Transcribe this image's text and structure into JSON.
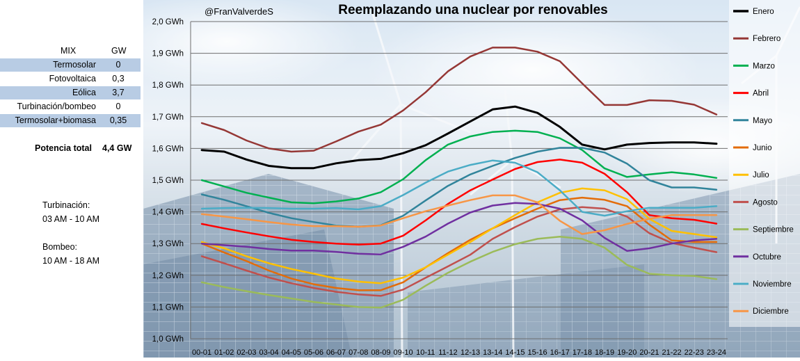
{
  "mix_table": {
    "header_label": "MIX",
    "header_unit": "GW",
    "rows": [
      {
        "label": "Termosolar",
        "value": "0"
      },
      {
        "label": "Fotovoltaica",
        "value": "0,3"
      },
      {
        "label": "Eólica",
        "value": "3,7"
      },
      {
        "label": "Turbinación/bombeo",
        "value": "0"
      },
      {
        "label": "Termosolar+biomasa",
        "value": "0,35"
      }
    ],
    "total_label": "Potencia total",
    "total_value": "4,4 GW"
  },
  "notes": {
    "turbinacion_label": "Turbinación:",
    "turbinacion_hours": "03 AM - 10 AM",
    "bombeo_label": "Bombeo:",
    "bombeo_hours": "10 AM - 18 AM"
  },
  "chart_data": {
    "type": "line",
    "title": "Reemplazando una nuclear por renovables",
    "subtitle": "@FranValverdeS",
    "ylim": [
      1.0,
      2.0
    ],
    "yticks": [
      1.0,
      1.1,
      1.2,
      1.3,
      1.4,
      1.5,
      1.6,
      1.7,
      1.8,
      1.9,
      2.0
    ],
    "ytick_labels": [
      "1,0 GWh",
      "1,1 GWh",
      "1,2 GWh",
      "1,3 GWh",
      "1,4 GWh",
      "1,5 GWh",
      "1,6 GWh",
      "1,7 GWh",
      "1,8 GWh",
      "1,9 GWh",
      "2,0 GWh"
    ],
    "grid": true,
    "legend_position": "right",
    "categories": [
      "00-01",
      "01-02",
      "02-03",
      "03-04",
      "04-05",
      "05-06",
      "06-07",
      "07-08",
      "08-09",
      "09-10",
      "10-11",
      "11-12",
      "12-13",
      "13-14",
      "14-15",
      "15-16",
      "16-17",
      "17-18",
      "18-19",
      "19-20",
      "20-21",
      "21-22",
      "22-23",
      "23-24"
    ],
    "series": [
      {
        "name": "Enero",
        "color": "#000000",
        "width": 3,
        "values": [
          1.595,
          1.59,
          1.565,
          1.545,
          1.538,
          1.538,
          1.553,
          1.563,
          1.567,
          1.585,
          1.61,
          1.647,
          1.685,
          1.723,
          1.732,
          1.712,
          1.668,
          1.612,
          1.597,
          1.612,
          1.617,
          1.619,
          1.619,
          1.615
        ]
      },
      {
        "name": "Febrero",
        "color": "#953735",
        "width": 2.5,
        "values": [
          1.68,
          1.658,
          1.625,
          1.6,
          1.59,
          1.593,
          1.622,
          1.653,
          1.675,
          1.72,
          1.777,
          1.843,
          1.89,
          1.918,
          1.918,
          1.905,
          1.875,
          1.805,
          1.737,
          1.737,
          1.752,
          1.75,
          1.738,
          1.707
        ]
      },
      {
        "name": "Marzo",
        "color": "#00b050",
        "width": 2.5,
        "values": [
          1.5,
          1.48,
          1.46,
          1.445,
          1.43,
          1.427,
          1.433,
          1.442,
          1.462,
          1.503,
          1.563,
          1.612,
          1.638,
          1.652,
          1.656,
          1.652,
          1.632,
          1.595,
          1.537,
          1.51,
          1.518,
          1.525,
          1.518,
          1.507
        ]
      },
      {
        "name": "Abril",
        "color": "#ff0000",
        "width": 2.5,
        "values": [
          1.362,
          1.348,
          1.335,
          1.323,
          1.312,
          1.305,
          1.3,
          1.297,
          1.3,
          1.325,
          1.373,
          1.425,
          1.468,
          1.502,
          1.535,
          1.557,
          1.565,
          1.555,
          1.52,
          1.462,
          1.39,
          1.38,
          1.375,
          1.363
        ]
      },
      {
        "name": "Mayo",
        "color": "#31849b",
        "width": 2.5,
        "values": [
          1.455,
          1.438,
          1.418,
          1.397,
          1.38,
          1.368,
          1.357,
          1.353,
          1.358,
          1.388,
          1.436,
          1.482,
          1.518,
          1.545,
          1.57,
          1.59,
          1.602,
          1.602,
          1.587,
          1.552,
          1.5,
          1.477,
          1.477,
          1.47
        ]
      },
      {
        "name": "Junio",
        "color": "#e36c09",
        "width": 2.5,
        "values": [
          1.3,
          1.272,
          1.245,
          1.215,
          1.19,
          1.172,
          1.16,
          1.153,
          1.153,
          1.178,
          1.225,
          1.27,
          1.312,
          1.348,
          1.38,
          1.41,
          1.437,
          1.445,
          1.438,
          1.418,
          1.36,
          1.31,
          1.305,
          1.305
        ]
      },
      {
        "name": "Julio",
        "color": "#ffc000",
        "width": 2.5,
        "values": [
          1.305,
          1.285,
          1.26,
          1.238,
          1.22,
          1.205,
          1.19,
          1.18,
          1.175,
          1.193,
          1.225,
          1.265,
          1.305,
          1.348,
          1.39,
          1.43,
          1.46,
          1.474,
          1.468,
          1.44,
          1.378,
          1.34,
          1.33,
          1.32
        ]
      },
      {
        "name": "Agosto",
        "color": "#c0504d",
        "width": 2.5,
        "values": [
          1.26,
          1.238,
          1.215,
          1.193,
          1.175,
          1.16,
          1.148,
          1.14,
          1.135,
          1.155,
          1.192,
          1.228,
          1.265,
          1.315,
          1.352,
          1.385,
          1.408,
          1.415,
          1.41,
          1.385,
          1.333,
          1.302,
          1.287,
          1.273
        ]
      },
      {
        "name": "Septiembre",
        "color": "#9bbb59",
        "width": 2.5,
        "values": [
          1.178,
          1.163,
          1.15,
          1.138,
          1.127,
          1.116,
          1.108,
          1.1,
          1.098,
          1.123,
          1.167,
          1.208,
          1.243,
          1.274,
          1.298,
          1.315,
          1.322,
          1.315,
          1.287,
          1.233,
          1.205,
          1.2,
          1.198,
          1.188
        ]
      },
      {
        "name": "Octubre",
        "color": "#7030a0",
        "width": 2.5,
        "values": [
          1.3,
          1.295,
          1.29,
          1.283,
          1.278,
          1.278,
          1.274,
          1.268,
          1.266,
          1.29,
          1.322,
          1.363,
          1.398,
          1.42,
          1.428,
          1.425,
          1.41,
          1.373,
          1.318,
          1.277,
          1.285,
          1.3,
          1.31,
          1.315
        ]
      },
      {
        "name": "Noviembre",
        "color": "#4bacc6",
        "width": 2.5,
        "values": [
          1.41,
          1.412,
          1.413,
          1.412,
          1.41,
          1.41,
          1.412,
          1.408,
          1.418,
          1.453,
          1.492,
          1.527,
          1.548,
          1.562,
          1.555,
          1.525,
          1.468,
          1.4,
          1.388,
          1.402,
          1.413,
          1.413,
          1.413,
          1.418
        ]
      },
      {
        "name": "Diciembre",
        "color": "#f79646",
        "width": 2.5,
        "values": [
          1.393,
          1.385,
          1.377,
          1.368,
          1.36,
          1.355,
          1.355,
          1.353,
          1.357,
          1.38,
          1.402,
          1.42,
          1.437,
          1.452,
          1.452,
          1.43,
          1.372,
          1.33,
          1.342,
          1.362,
          1.378,
          1.39,
          1.39,
          1.39
        ]
      }
    ]
  }
}
